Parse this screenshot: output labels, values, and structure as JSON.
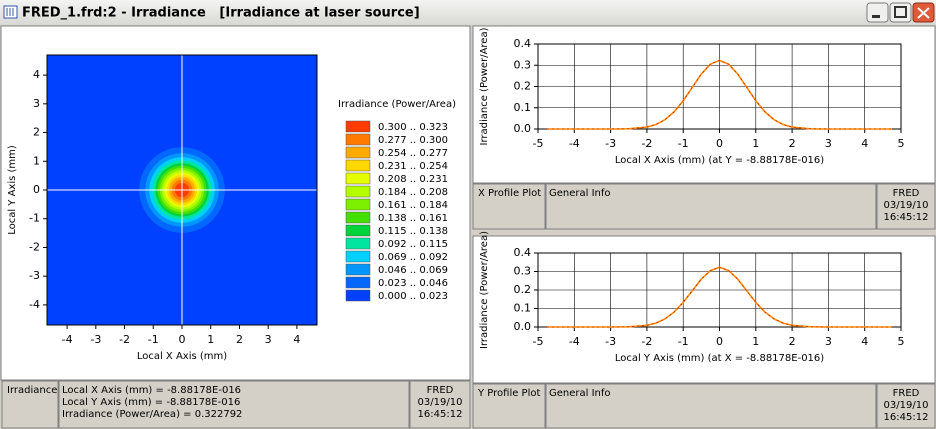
{
  "window": {
    "title": "FRED_1.frd:2 - Irradiance   [Irradiance at laser source]"
  },
  "chart_data": [
    {
      "type": "contour",
      "xlabel": "Local X Axis (mm)",
      "ylabel": "Local Y Axis (mm)",
      "legend_title": "Irradiance (Power/Area)",
      "xlim": [
        -4.7,
        4.7
      ],
      "ylim": [
        -4.7,
        4.7
      ],
      "xticks": [
        -4,
        -3,
        -2,
        -1,
        0,
        1,
        2,
        3,
        4
      ],
      "yticks": [
        -4,
        -3,
        -2,
        -1,
        0,
        1,
        2,
        3,
        4
      ],
      "center": [
        0,
        0
      ],
      "series": [
        {
          "name": "0.300 .. 0.323",
          "color": "#ff3c00",
          "radius": 0.25
        },
        {
          "name": "0.277 .. 0.300",
          "color": "#ff7a00",
          "radius": 0.36
        },
        {
          "name": "0.254 .. 0.277",
          "color": "#ffaa00",
          "radius": 0.45
        },
        {
          "name": "0.231 .. 0.254",
          "color": "#ffd800",
          "radius": 0.53
        },
        {
          "name": "0.208 .. 0.231",
          "color": "#e6ff00",
          "radius": 0.61
        },
        {
          "name": "0.184 .. 0.208",
          "color": "#b4ff00",
          "radius": 0.69
        },
        {
          "name": "0.161 .. 0.184",
          "color": "#7cf000",
          "radius": 0.77
        },
        {
          "name": "0.138 .. 0.161",
          "color": "#44e000",
          "radius": 0.85
        },
        {
          "name": "0.115 .. 0.138",
          "color": "#00d23c",
          "radius": 0.93
        },
        {
          "name": "0.092 .. 0.115",
          "color": "#00e6a0",
          "radius": 1.03
        },
        {
          "name": "0.069 .. 0.092",
          "color": "#00d0ff",
          "radius": 1.14
        },
        {
          "name": "0.046 .. 0.069",
          "color": "#0096ff",
          "radius": 1.28
        },
        {
          "name": "0.023 .. 0.046",
          "color": "#0068ff",
          "radius": 1.49
        },
        {
          "name": "0.000 .. 0.023",
          "color": "#0040ff",
          "radius": null
        }
      ]
    },
    {
      "type": "line",
      "xlabel": "Local X Axis (mm) (at Y = -8.88178E-016)",
      "ylabel": "Irradiance (Power/Area)",
      "xlim": [
        -5,
        5
      ],
      "ylim": [
        0,
        0.4
      ],
      "xticks": [
        -5,
        -4,
        -3,
        -2,
        -1,
        0,
        1,
        2,
        3,
        4,
        5
      ],
      "yticks": [
        {
          "value": 0,
          "label": "0.0"
        },
        0.1,
        0.2,
        0.3,
        0.4
      ],
      "grid": true,
      "x": [
        -4.75,
        -4,
        -3,
        -2.5,
        -2,
        -1.75,
        -1.5,
        -1.25,
        -1,
        -0.75,
        -0.5,
        -0.25,
        0,
        0.25,
        0.5,
        0.75,
        1,
        1.25,
        1.5,
        1.75,
        2,
        2.5,
        3,
        4,
        4.75
      ],
      "series": [
        {
          "color": "#ff8c00",
          "values": [
            0,
            0,
            0,
            0.001,
            0.009,
            0.021,
            0.044,
            0.081,
            0.133,
            0.196,
            0.259,
            0.305,
            0.323,
            0.305,
            0.259,
            0.196,
            0.133,
            0.081,
            0.044,
            0.021,
            0.009,
            0.001,
            0,
            0,
            0
          ]
        }
      ]
    },
    {
      "type": "line",
      "xlabel": "Local Y Axis (mm) (at X = -8.88178E-016)",
      "ylabel": "Irradiance (Power/Area)",
      "xlim": [
        -5,
        5
      ],
      "ylim": [
        0,
        0.4
      ],
      "xticks": [
        -5,
        -4,
        -3,
        -2,
        -1,
        0,
        1,
        2,
        3,
        4,
        5
      ],
      "yticks": [
        {
          "value": 0,
          "label": "0.0"
        },
        0.1,
        0.2,
        0.3,
        0.4
      ],
      "grid": true,
      "x": [
        -4.75,
        -4,
        -3,
        -2.5,
        -2,
        -1.75,
        -1.5,
        -1.25,
        -1,
        -0.75,
        -0.5,
        -0.25,
        0,
        0.25,
        0.5,
        0.75,
        1,
        1.25,
        1.5,
        1.75,
        2,
        2.5,
        3,
        4,
        4.75
      ],
      "series": [
        {
          "color": "#ff8c00",
          "values": [
            0,
            0,
            0,
            0.001,
            0.009,
            0.021,
            0.044,
            0.081,
            0.133,
            0.196,
            0.259,
            0.305,
            0.323,
            0.305,
            0.259,
            0.196,
            0.133,
            0.081,
            0.044,
            0.021,
            0.009,
            0.001,
            0,
            0,
            0
          ]
        }
      ]
    }
  ],
  "info_panels": [
    {
      "label": "Irradiance",
      "lines": [
        "Local X Axis (mm) = -8.88178E-016",
        "Local Y Axis (mm) = -8.88178E-016",
        "Irradiance (Power/Area) = 0.322792"
      ],
      "stamp": [
        "FRED",
        "03/19/10",
        "16:45:12"
      ]
    },
    {
      "label": "X Profile Plot",
      "lines": [
        "General Info"
      ],
      "stamp": [
        "FRED",
        "03/19/10",
        "16:45:12"
      ]
    },
    {
      "label": "Y Profile Plot",
      "lines": [
        "General Info"
      ],
      "stamp": [
        "FRED",
        "03/19/10",
        "16:45:12"
      ]
    }
  ]
}
